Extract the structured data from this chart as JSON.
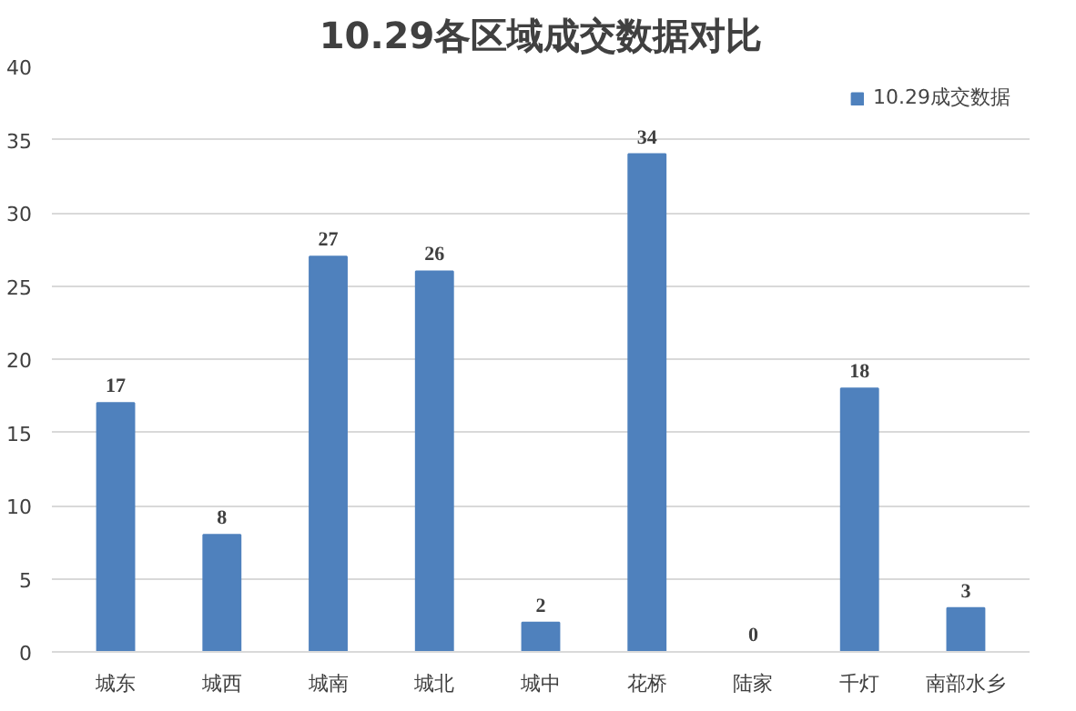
{
  "chart_data": {
    "type": "bar",
    "title": "10.29各区域成交数据对比",
    "categories": [
      "城东",
      "城西",
      "城南",
      "城北",
      "城中",
      "花桥",
      "陆家",
      "千灯",
      "南部水乡"
    ],
    "series": [
      {
        "name": "10.29成交数据",
        "color": "#4f81bd",
        "values": [
          17,
          8,
          27,
          26,
          2,
          34,
          0,
          18,
          3
        ]
      }
    ],
    "ylim": [
      0,
      40
    ],
    "yticks": [
      0,
      5,
      10,
      15,
      20,
      25,
      30,
      35,
      40
    ],
    "grid": "y",
    "legend": "top right",
    "data_labels": true
  }
}
